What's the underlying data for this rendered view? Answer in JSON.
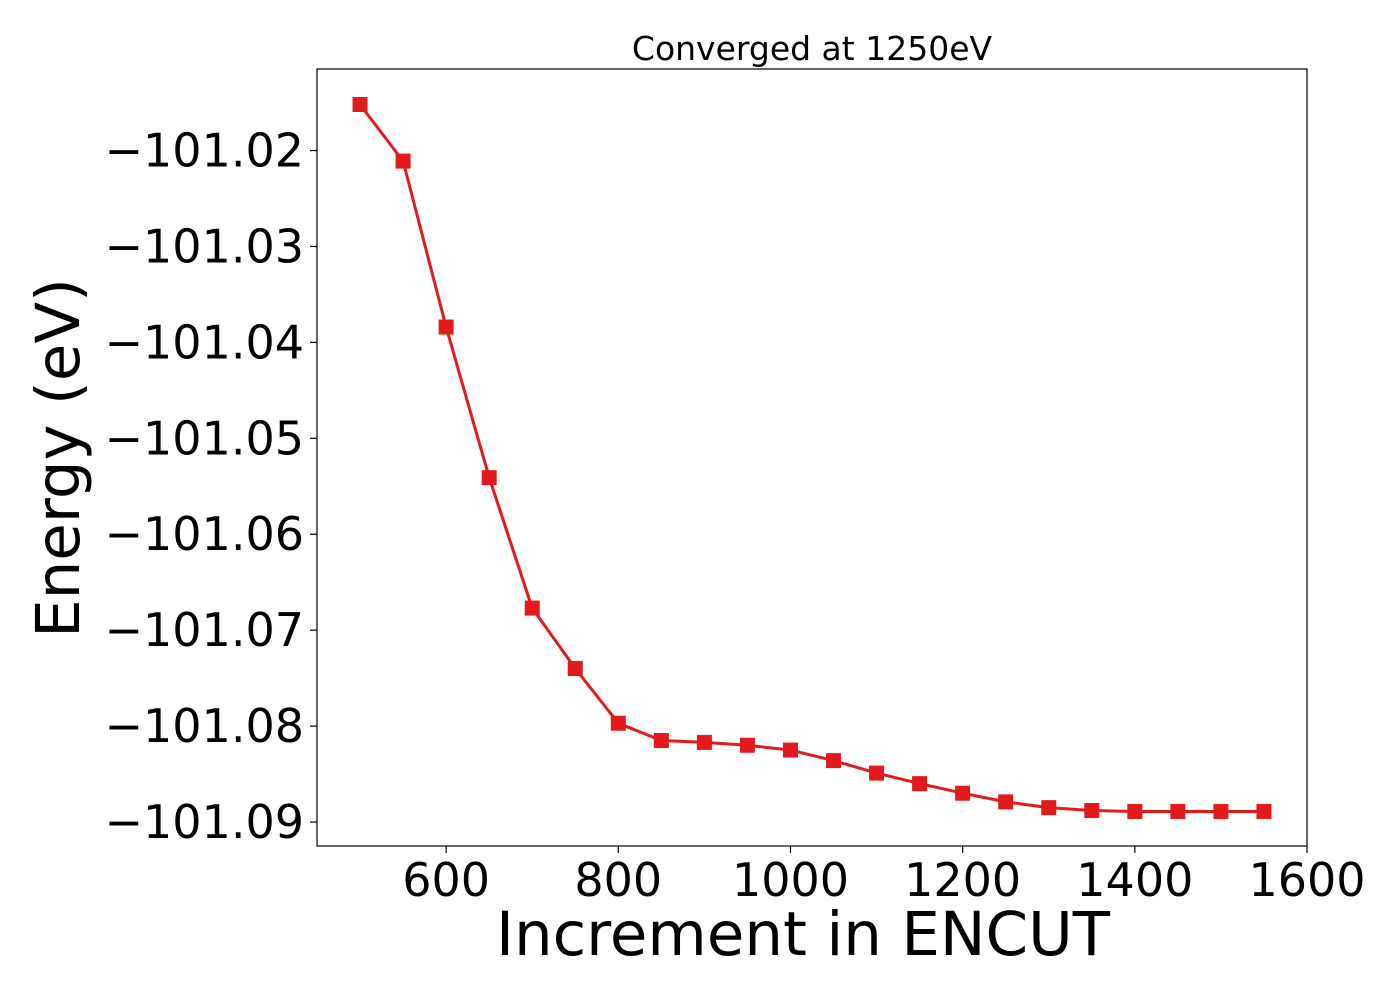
{
  "chart_data": {
    "type": "line",
    "title": "Converged at 1250eV",
    "xlabel": "Increment in ENCUT",
    "ylabel": "Energy (eV)",
    "xlim": [
      450,
      1600
    ],
    "ylim": [
      -101.0925,
      -101.0115
    ],
    "x_ticks": [
      600,
      800,
      1000,
      1200,
      1400,
      1600
    ],
    "x_tick_labels": [
      "600",
      "800",
      "1000",
      "1200",
      "1400",
      "1600"
    ],
    "y_ticks": [
      -101.02,
      -101.03,
      -101.04,
      -101.05,
      -101.06,
      -101.07,
      -101.08,
      -101.09
    ],
    "y_tick_labels": [
      "−101.02",
      "−101.03",
      "−101.04",
      "−101.05",
      "−101.06",
      "−101.07",
      "−101.08",
      "−101.09"
    ],
    "grid": false,
    "legend": "none",
    "series": [
      {
        "color": "#e31a1c",
        "marker": "square",
        "x": [
          500,
          550,
          600,
          650,
          700,
          750,
          800,
          850,
          900,
          950,
          1000,
          1050,
          1100,
          1150,
          1200,
          1250,
          1300,
          1350,
          1400,
          1450,
          1500,
          1550
        ],
        "y": [
          -101.0152,
          -101.0211,
          -101.0384,
          -101.0541,
          -101.0677,
          -101.074,
          -101.0797,
          -101.0815,
          -101.0817,
          -101.082,
          -101.0825,
          -101.0836,
          -101.0849,
          -101.086,
          -101.087,
          -101.0879,
          -101.0885,
          -101.0888,
          -101.0889,
          -101.0889,
          -101.0889,
          -101.0889
        ]
      }
    ]
  }
}
